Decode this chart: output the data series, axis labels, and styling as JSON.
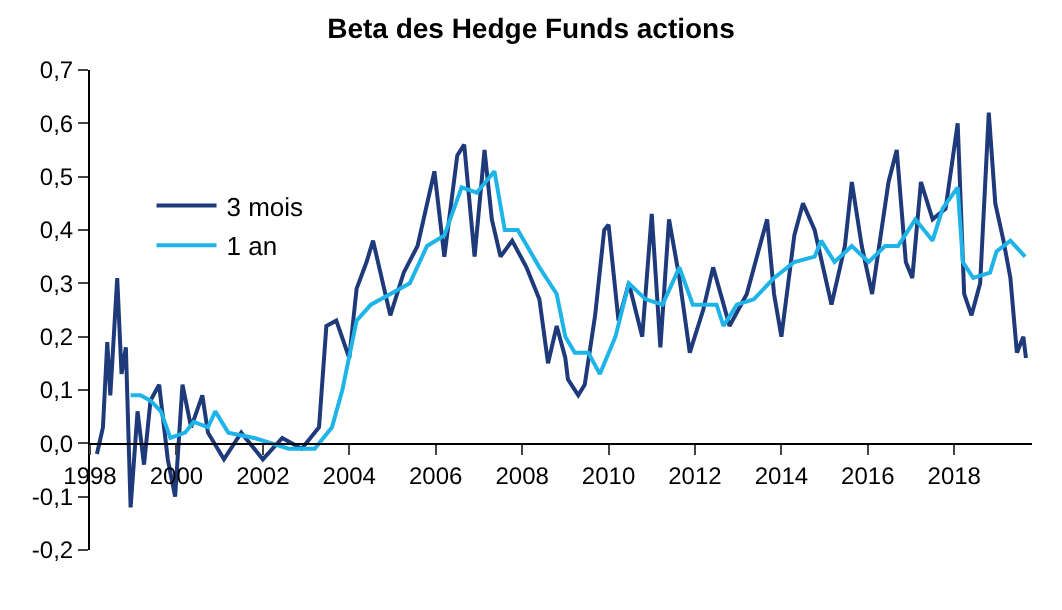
{
  "chart_data": {
    "type": "line",
    "title": "Beta des Hedge Funds actions",
    "xlim": [
      1998,
      2019.8
    ],
    "xticks": [
      1998,
      2000,
      2002,
      2004,
      2006,
      2008,
      2010,
      2012,
      2014,
      2016,
      2018
    ],
    "ylim": [
      -0.2,
      0.7
    ],
    "yticks": [
      {
        "value": -0.2,
        "label": "-0,2"
      },
      {
        "value": -0.1,
        "label": "-0,1"
      },
      {
        "value": 0,
        "label": "0,0"
      },
      {
        "value": 0.1,
        "label": "0,1"
      },
      {
        "value": 0.2,
        "label": "0,2"
      },
      {
        "value": 0.3,
        "label": "0,3"
      },
      {
        "value": 0.4,
        "label": "0,4"
      },
      {
        "value": 0.5,
        "label": "0,5"
      },
      {
        "value": 0.6,
        "label": "0,6"
      },
      {
        "value": 0.7,
        "label": "0,7"
      }
    ],
    "legend": "top left",
    "marker": "none",
    "line_style": "solid",
    "series": [
      {
        "name": "3 mois",
        "color": "#1f3a7a",
        "x": [
          1998.16,
          1998.3,
          1998.4,
          1998.47,
          1998.63,
          1998.73,
          1998.83,
          1998.94,
          1999.1,
          1999.25,
          1999.4,
          1999.6,
          1999.8,
          1999.97,
          2000.14,
          2000.34,
          2000.6,
          2000.73,
          2001.1,
          2001.5,
          2002.0,
          2002.45,
          2002.9,
          2003.3,
          2003.47,
          2003.7,
          2004.0,
          2004.17,
          2004.4,
          2004.55,
          2004.95,
          2005.26,
          2005.58,
          2005.97,
          2006.2,
          2006.5,
          2006.66,
          2006.9,
          2007.13,
          2007.3,
          2007.5,
          2007.77,
          2008.1,
          2008.4,
          2008.6,
          2008.8,
          2009.0,
          2009.06,
          2009.3,
          2009.45,
          2009.69,
          2009.9,
          2010.0,
          2010.23,
          2010.47,
          2010.78,
          2011.0,
          2011.2,
          2011.4,
          2011.64,
          2011.88,
          2012.19,
          2012.42,
          2012.63,
          2012.8,
          2013.2,
          2013.5,
          2013.67,
          2013.83,
          2014.0,
          2014.3,
          2014.5,
          2014.77,
          2015.16,
          2015.47,
          2015.63,
          2015.86,
          2016.1,
          2016.48,
          2016.67,
          2016.88,
          2017.03,
          2017.23,
          2017.5,
          2017.8,
          2018.08,
          2018.23,
          2018.4,
          2018.6,
          2018.8,
          2018.95,
          2019.14,
          2019.3,
          2019.45,
          2019.6,
          2019.66
        ],
        "values": [
          -0.02,
          0.03,
          0.19,
          0.09,
          0.31,
          0.13,
          0.18,
          -0.12,
          0.06,
          -0.04,
          0.08,
          0.11,
          -0.03,
          -0.1,
          0.11,
          0.03,
          0.09,
          0.02,
          -0.03,
          0.02,
          -0.03,
          0.01,
          -0.01,
          0.03,
          0.22,
          0.23,
          0.16,
          0.29,
          0.34,
          0.38,
          0.24,
          0.32,
          0.37,
          0.51,
          0.35,
          0.54,
          0.56,
          0.35,
          0.55,
          0.42,
          0.35,
          0.38,
          0.33,
          0.27,
          0.15,
          0.22,
          0.16,
          0.12,
          0.09,
          0.11,
          0.24,
          0.4,
          0.41,
          0.23,
          0.3,
          0.2,
          0.43,
          0.18,
          0.42,
          0.31,
          0.17,
          0.25,
          0.33,
          0.27,
          0.22,
          0.28,
          0.37,
          0.42,
          0.28,
          0.2,
          0.39,
          0.45,
          0.4,
          0.26,
          0.37,
          0.49,
          0.37,
          0.28,
          0.49,
          0.55,
          0.34,
          0.31,
          0.49,
          0.42,
          0.44,
          0.6,
          0.28,
          0.24,
          0.3,
          0.62,
          0.45,
          0.38,
          0.31,
          0.17,
          0.2,
          0.16
        ]
      },
      {
        "name": "1 an",
        "color": "#1eb4e8",
        "x": [
          1998.94,
          1999.17,
          1999.4,
          1999.64,
          1999.86,
          2000.2,
          2000.4,
          2000.73,
          2000.9,
          2001.2,
          2001.8,
          2002.6,
          2003.2,
          2003.6,
          2003.84,
          2004.17,
          2004.5,
          2004.95,
          2005.4,
          2005.8,
          2006.2,
          2006.6,
          2006.95,
          2007.36,
          2007.6,
          2007.9,
          2008.4,
          2008.8,
          2009.0,
          2009.22,
          2009.53,
          2009.8,
          2010.16,
          2010.47,
          2010.86,
          2011.25,
          2011.64,
          2011.95,
          2012.5,
          2012.66,
          2012.97,
          2013.36,
          2013.83,
          2014.3,
          2014.77,
          2014.92,
          2015.23,
          2015.63,
          2016.02,
          2016.4,
          2016.7,
          2017.1,
          2017.5,
          2017.73,
          2018.08,
          2018.2,
          2018.44,
          2018.83,
          2018.98,
          2019.3,
          2019.64
        ],
        "values": [
          0.09,
          0.09,
          0.08,
          0.06,
          0.01,
          0.02,
          0.04,
          0.03,
          0.06,
          0.02,
          0.01,
          -0.01,
          -0.01,
          0.03,
          0.1,
          0.23,
          0.26,
          0.28,
          0.3,
          0.37,
          0.39,
          0.48,
          0.47,
          0.51,
          0.4,
          0.4,
          0.33,
          0.28,
          0.2,
          0.17,
          0.17,
          0.13,
          0.2,
          0.3,
          0.27,
          0.26,
          0.33,
          0.26,
          0.26,
          0.22,
          0.26,
          0.27,
          0.31,
          0.34,
          0.35,
          0.38,
          0.34,
          0.37,
          0.34,
          0.37,
          0.37,
          0.42,
          0.38,
          0.44,
          0.48,
          0.34,
          0.31,
          0.32,
          0.36,
          0.38,
          0.35
        ]
      }
    ]
  }
}
